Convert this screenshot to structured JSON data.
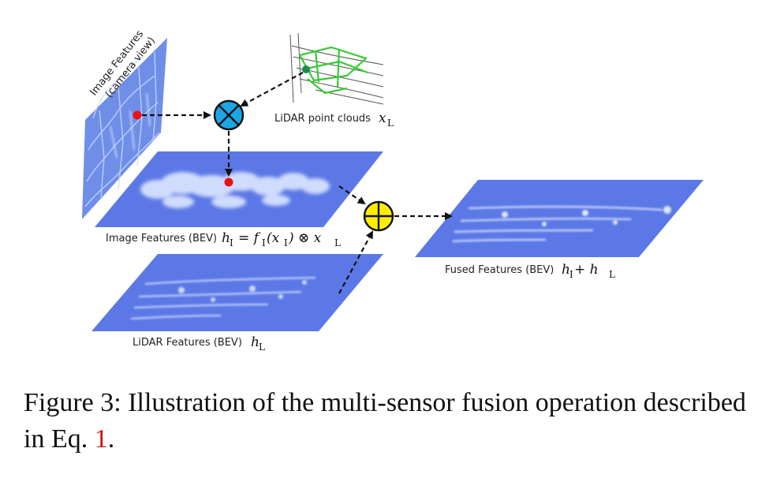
{
  "figure": {
    "image_features_camera_label_line1": "Image Features",
    "image_features_camera_label_line2": "(camera view)",
    "lidar_points_label": "LiDAR point clouds",
    "lidar_points_math": "x",
    "lidar_points_sub": "L",
    "image_bev_label": "Image Features (BEV)",
    "image_bev_math": "h",
    "image_bev_sub": "I",
    "image_bev_eq": "= f",
    "image_bev_eq_sub": "I",
    "image_bev_eq_arg": "(x",
    "image_bev_eq_arg_sub": "I",
    "image_bev_eq_tail": ") ⊗ x",
    "image_bev_eq_tail_sub": "L",
    "lidar_bev_label": "LiDAR Features (BEV)",
    "lidar_bev_math": "h",
    "lidar_bev_sub": "L",
    "fused_label": "Fused Features (BEV)",
    "fused_math_a": "h",
    "fused_math_a_sub": "I",
    "fused_plus": " + h",
    "fused_math_b_sub": "L"
  },
  "caption": {
    "prefix": "Figure 3: Illustration of the multi-sensor fusion operation described in Eq.",
    "ref": "1",
    "suffix": "."
  },
  "colors": {
    "plane": "#5b78e6",
    "multiply_node": "#1ba7e6",
    "add_node": "#ffee00",
    "point_red": "#ee1111",
    "lidar_green": "#22cc22",
    "caption_ref": "#d01515"
  }
}
